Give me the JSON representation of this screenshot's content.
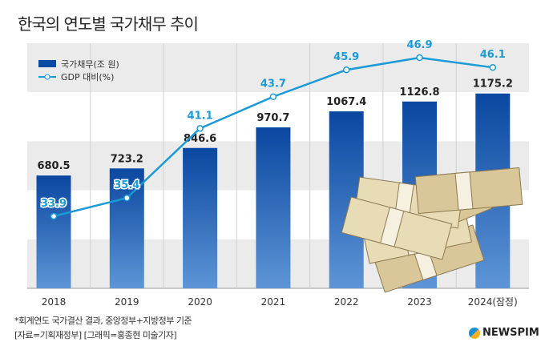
{
  "title": "한국의 연도별 국가채무 추이",
  "chart_data": {
    "type": "bar+line",
    "categories": [
      "2018",
      "2019",
      "2020",
      "2021",
      "2022",
      "2023",
      "2024(잠정)"
    ],
    "series": [
      {
        "name": "국가채무(조 원)",
        "type": "bar",
        "values": [
          680.5,
          723.2,
          846.6,
          970.7,
          1067.4,
          1126.8,
          1175.2
        ],
        "color": "#0a4aa0"
      },
      {
        "name": "GDP 대비(%)",
        "type": "line",
        "values": [
          33.9,
          35.4,
          41.1,
          43.7,
          45.9,
          46.9,
          46.1
        ],
        "color": "#1a9ad6"
      }
    ],
    "legend": "top-left",
    "grid": "alternating bands"
  },
  "footnote": "*회계연도 국가결산 결과, 중앙정부+지방정부 기준",
  "source": "[자료=기획재정부] [그래픽=홍종현 미술기자]",
  "logo": "NEWSPIM"
}
